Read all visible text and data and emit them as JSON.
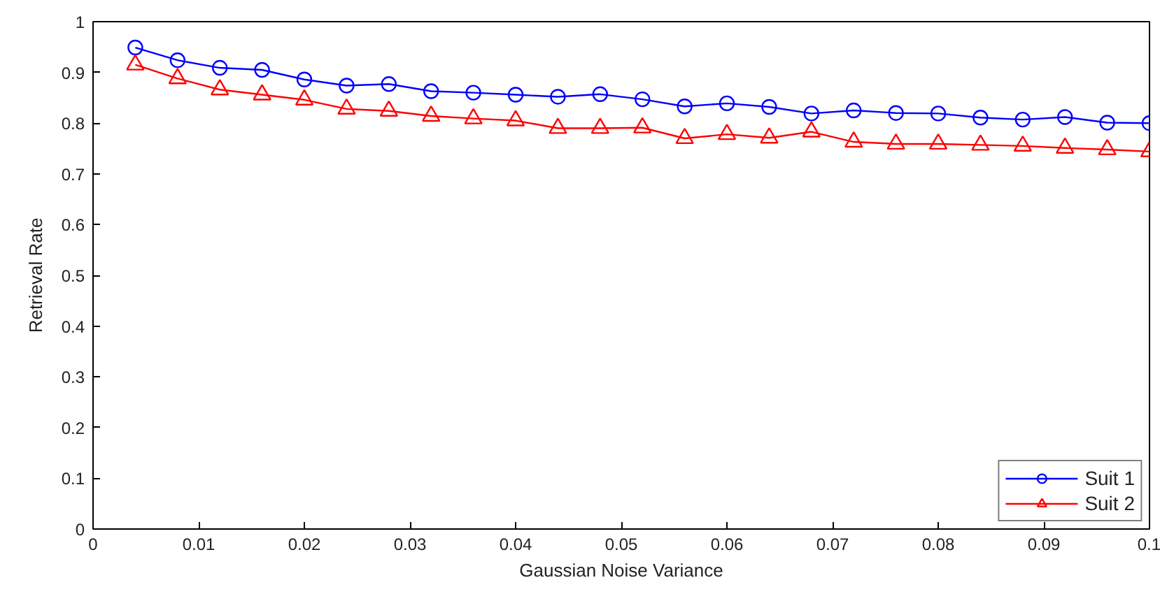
{
  "chart_data": {
    "type": "line",
    "xlabel": "Gaussian Noise Variance",
    "ylabel": "Retrieval Rate",
    "x": [
      0.004,
      0.008,
      0.012,
      0.016,
      0.02,
      0.024,
      0.028,
      0.032,
      0.036,
      0.04,
      0.044,
      0.048,
      0.052,
      0.056,
      0.06,
      0.064,
      0.068,
      0.072,
      0.076,
      0.08,
      0.084,
      0.088,
      0.092,
      0.096,
      0.1
    ],
    "xlim": [
      0,
      0.1
    ],
    "ylim": [
      0,
      1
    ],
    "xticks": [
      0,
      0.01,
      0.02,
      0.03,
      0.04,
      0.05,
      0.06,
      0.07,
      0.08,
      0.09,
      0.1
    ],
    "yticks": [
      0,
      0.1,
      0.2,
      0.3,
      0.4,
      0.5,
      0.6,
      0.7,
      0.8,
      0.9,
      1
    ],
    "grid": false,
    "legend": "bottom right",
    "line_style": "solid",
    "series": [
      {
        "name": "Suit 1",
        "color": "#0000ff",
        "marker": "circle",
        "values": [
          0.949,
          0.924,
          0.909,
          0.905,
          0.886,
          0.874,
          0.877,
          0.863,
          0.86,
          0.856,
          0.852,
          0.857,
          0.847,
          0.833,
          0.839,
          0.832,
          0.819,
          0.825,
          0.82,
          0.819,
          0.811,
          0.807,
          0.812,
          0.801,
          0.8
        ]
      },
      {
        "name": "Suit 2",
        "color": "#ff0000",
        "marker": "triangle",
        "values": [
          0.915,
          0.888,
          0.866,
          0.856,
          0.846,
          0.828,
          0.824,
          0.814,
          0.809,
          0.805,
          0.79,
          0.79,
          0.791,
          0.77,
          0.778,
          0.771,
          0.783,
          0.763,
          0.759,
          0.759,
          0.757,
          0.755,
          0.751,
          0.748,
          0.744
        ]
      }
    ]
  }
}
